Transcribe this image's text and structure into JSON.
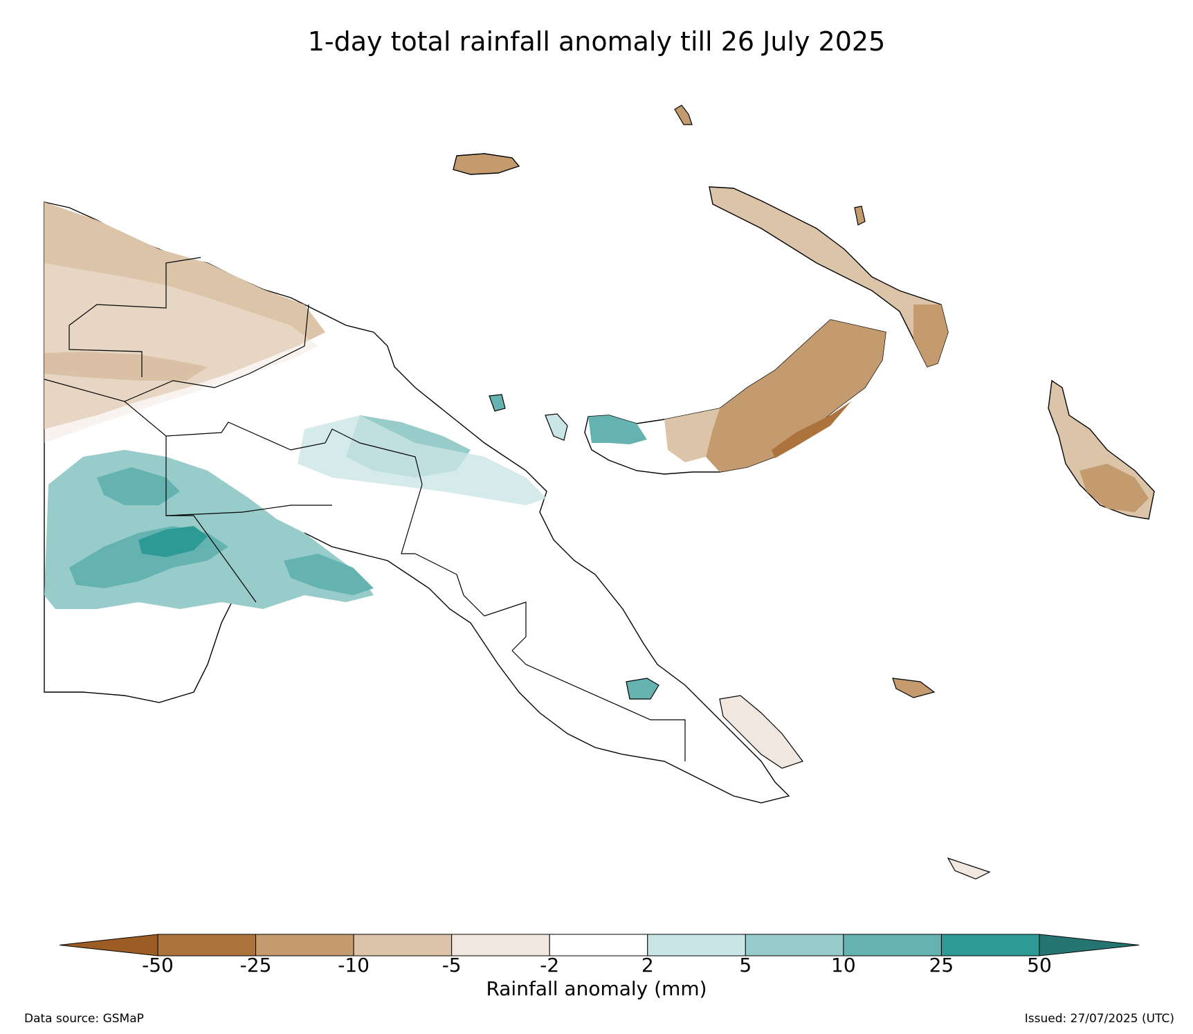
{
  "title": "1-day total rainfall anomaly till 26 July 2025",
  "colorbar": {
    "label": "Rainfall anomaly (mm)",
    "ticks": [
      "-50",
      "-25",
      "-10",
      "-5",
      "-2",
      "2",
      "5",
      "10",
      "25",
      "50"
    ],
    "colors": [
      "#9c5d24",
      "#ad733d",
      "#c39b6e",
      "#dcc4a9",
      "#f2e7de",
      "#ffffff",
      "#cae5e5",
      "#97cccb",
      "#64b3b1",
      "#2e9a96",
      "#257673"
    ]
  },
  "footer": {
    "source": "Data source: GSMaP",
    "issued": "Issued: 27/07/2025 (UTC)"
  }
}
